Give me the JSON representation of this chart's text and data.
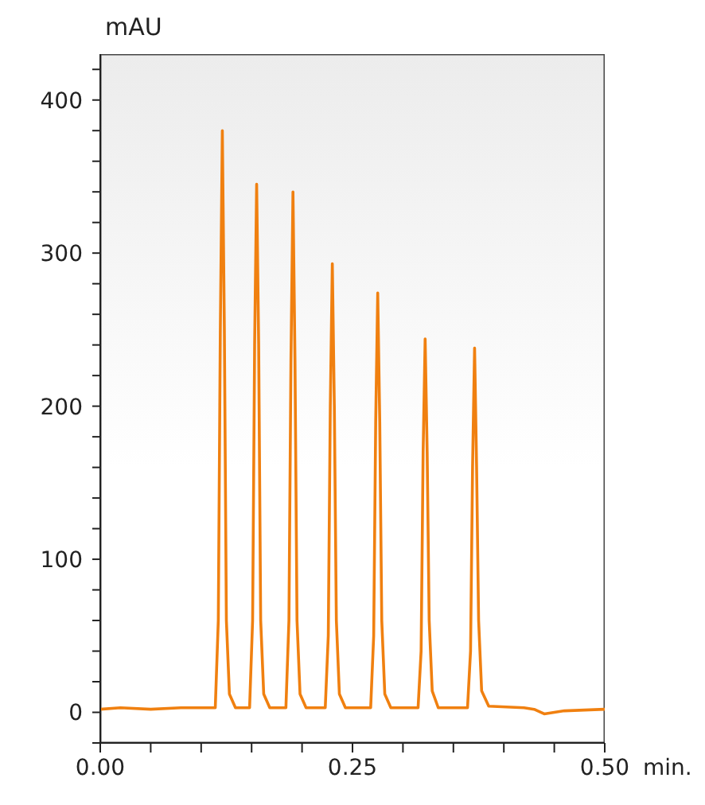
{
  "chart_data": {
    "type": "line",
    "xlabel": "min.",
    "ylabel": "mAU",
    "x": [
      0,
      0.02,
      0.05,
      0.08,
      0.114,
      0.117,
      0.119,
      0.121,
      0.123,
      0.125,
      0.128,
      0.134,
      0.148,
      0.151,
      0.153,
      0.155,
      0.157,
      0.159,
      0.162,
      0.168,
      0.184,
      0.187,
      0.189,
      0.191,
      0.193,
      0.195,
      0.198,
      0.204,
      0.223,
      0.226,
      0.228,
      0.23,
      0.232,
      0.234,
      0.237,
      0.243,
      0.268,
      0.271,
      0.273,
      0.275,
      0.277,
      0.279,
      0.282,
      0.288,
      0.315,
      0.318,
      0.32,
      0.322,
      0.324,
      0.326,
      0.329,
      0.335,
      0.364,
      0.367,
      0.369,
      0.371,
      0.373,
      0.375,
      0.378,
      0.385,
      0.42,
      0.43,
      0.44,
      0.46,
      0.5
    ],
    "series": [
      {
        "color": "#f08010",
        "values": [
          2,
          3,
          2,
          3,
          3,
          60,
          250,
          380,
          250,
          60,
          12,
          3,
          3,
          60,
          240,
          345,
          240,
          60,
          12,
          3,
          3,
          60,
          230,
          340,
          230,
          60,
          12,
          3,
          3,
          50,
          200,
          293,
          200,
          60,
          12,
          3,
          3,
          50,
          190,
          274,
          190,
          60,
          12,
          3,
          3,
          40,
          170,
          244,
          170,
          60,
          14,
          3,
          3,
          40,
          160,
          238,
          160,
          60,
          14,
          4,
          3,
          2,
          -1,
          1,
          2
        ]
      }
    ],
    "xlim": [
      0,
      0.5
    ],
    "xticks": [
      {
        "value": 0,
        "label": "0.00"
      },
      {
        "value": 0.05,
        "label": null
      },
      {
        "value": 0.1,
        "label": null
      },
      {
        "value": 0.15,
        "label": null
      },
      {
        "value": 0.2,
        "label": null
      },
      {
        "value": 0.25,
        "label": "0.25"
      },
      {
        "value": 0.3,
        "label": null
      },
      {
        "value": 0.35,
        "label": null
      },
      {
        "value": 0.4,
        "label": null
      },
      {
        "value": 0.45,
        "label": null
      },
      {
        "value": 0.5,
        "label": "0.50"
      }
    ],
    "ylim": [
      -20,
      430
    ],
    "yticks": [
      {
        "value": -20,
        "label": null
      },
      0,
      {
        "value": 20,
        "label": null
      },
      {
        "value": 40,
        "label": null
      },
      {
        "value": 60,
        "label": null
      },
      {
        "value": 80,
        "label": null
      },
      100,
      {
        "value": 120,
        "label": null
      },
      {
        "value": 140,
        "label": null
      },
      {
        "value": 160,
        "label": null
      },
      {
        "value": 180,
        "label": null
      },
      200,
      {
        "value": 220,
        "label": null
      },
      {
        "value": 240,
        "label": null
      },
      {
        "value": 260,
        "label": null
      },
      {
        "value": 280,
        "label": null
      },
      300,
      {
        "value": 320,
        "label": null
      },
      {
        "value": 340,
        "label": null
      },
      {
        "value": 360,
        "label": null
      },
      {
        "value": 380,
        "label": null
      },
      400,
      {
        "value": 420,
        "label": null
      }
    ],
    "grid": false,
    "marker": "none",
    "line_style": "solid",
    "legend": false
  }
}
